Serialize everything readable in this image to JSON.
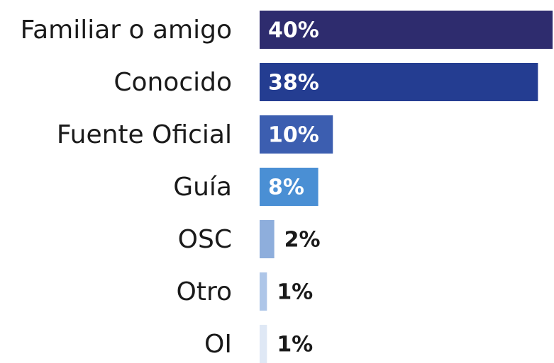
{
  "chart_data": {
    "type": "bar",
    "orientation": "horizontal",
    "categories": [
      "Familiar o amigo",
      "Conocido",
      "Fuente Oficial",
      "Guía",
      "OSC",
      "Otro",
      "OI"
    ],
    "values": [
      40,
      38,
      10,
      8,
      2,
      1,
      1
    ],
    "value_labels": [
      "40%",
      "38%",
      "10%",
      "8%",
      "2%",
      "1%",
      "1%"
    ],
    "colors": [
      "#2e2c6e",
      "#243d91",
      "#3c5eb0",
      "#4a8fd4",
      "#8eaedc",
      "#aec6e8",
      "#dfe8f5"
    ]
  }
}
